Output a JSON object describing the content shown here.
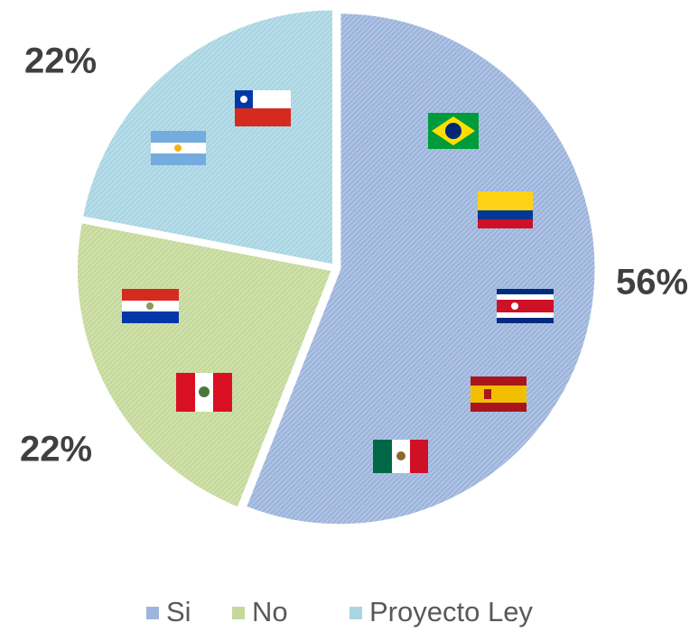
{
  "chart_data": {
    "type": "pie",
    "categories": [
      "Si",
      "No",
      "Proyecto Ley"
    ],
    "values": [
      56,
      22,
      22
    ],
    "value_labels": [
      "56%",
      "22%",
      "22%"
    ],
    "colors": [
      "#9db5dc",
      "#c5d99a",
      "#a9d5e3"
    ],
    "legend": "bottom"
  }
}
